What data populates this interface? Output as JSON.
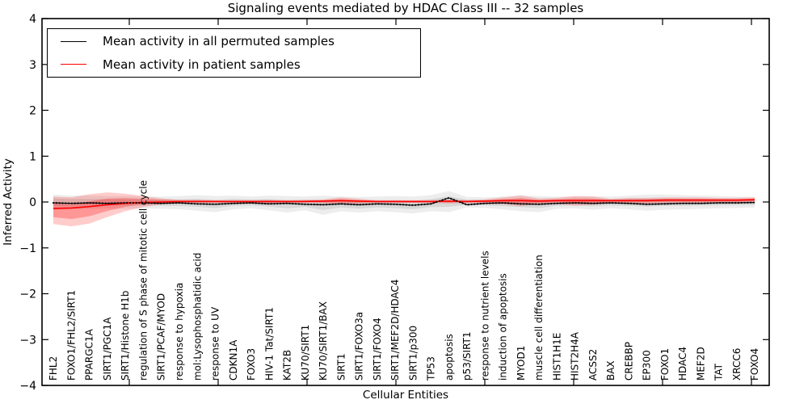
{
  "figure": {
    "title": "Signaling events mediated by HDAC Class III -- 32 samples",
    "xlabel": "Cellular Entities",
    "ylabel": "Inferred Activity",
    "legend": [
      {
        "label": "Mean activity in all permuted samples",
        "color": "#000000"
      },
      {
        "label": "Mean activity in patient samples",
        "color": "#ff0000"
      }
    ]
  },
  "chart_data": {
    "type": "line",
    "title": "Signaling events mediated by HDAC Class III -- 32 samples",
    "xlabel": "Cellular Entities",
    "ylabel": "Inferred Activity",
    "ylim": [
      -4,
      4
    ],
    "yticks": [
      4,
      3,
      2,
      1,
      0,
      -1,
      -2,
      -3,
      -4
    ],
    "ytick_labels": [
      "4",
      "3",
      "2",
      "1",
      "0",
      "−1",
      "−2",
      "−3",
      "−4"
    ],
    "grid": false,
    "legend_position": "upper left",
    "x_tick_label_rotation": 90,
    "categories": [
      "FHL2",
      "FOXO1/FHL2/SIRT1",
      "PPARGC1A",
      "SIRT1/PGC1A",
      "SIRT1/Histone H1b",
      "regulation of S phase of mitotic cell cycle",
      "SIRT1/PCAF/MYOD",
      "response to hypoxia",
      "mol:Lysophosphatidic acid",
      "response to UV",
      "CDKN1A",
      "FOXO3",
      "HIV-1 Tat/SIRT1",
      "KAT2B",
      "KU70/SIRT1",
      "KU70/SIRT1/BAX",
      "SIRT1",
      "SIRT1/FOXO3a",
      "SIRT1/FOXO4",
      "SIRT1/MEF2D/HDAC4",
      "SIRT1/p300",
      "TP53",
      "apoptosis",
      "p53/SIRT1",
      "response to nutrient levels",
      "induction of apoptosis",
      "MYOD1",
      "muscle cell differentiation",
      "HIST1H1E",
      "HIST2H4A",
      "ACSS2",
      "BAX",
      "CREBBP",
      "EP300",
      "FOXO1",
      "HDAC4",
      "MEF2D",
      "TAT",
      "XRCC6",
      "FOXO4"
    ],
    "series": [
      {
        "name": "Mean activity in all permuted samples",
        "color": "#000000",
        "style": "solid-with-dot-markers",
        "values": [
          -0.02,
          -0.03,
          -0.02,
          -0.03,
          -0.02,
          -0.02,
          -0.03,
          -0.02,
          -0.04,
          -0.05,
          -0.03,
          -0.02,
          -0.04,
          -0.03,
          -0.05,
          -0.06,
          -0.04,
          -0.06,
          -0.04,
          -0.05,
          -0.07,
          -0.04,
          0.09,
          -0.06,
          -0.03,
          -0.02,
          -0.04,
          -0.05,
          -0.03,
          -0.02,
          -0.03,
          -0.02,
          -0.03,
          -0.05,
          -0.04,
          -0.03,
          -0.03,
          -0.02,
          -0.02,
          -0.01
        ]
      },
      {
        "name": "Mean activity in patient samples",
        "color": "#ff0000",
        "style": "solid",
        "values": [
          -0.14,
          -0.13,
          -0.1,
          -0.06,
          -0.03,
          -0.01,
          0.0,
          0.01,
          0.01,
          0.01,
          0.01,
          0.01,
          0.01,
          0.01,
          0.01,
          0.02,
          0.03,
          0.02,
          0.01,
          0.01,
          0.01,
          0.01,
          0.02,
          0.01,
          0.02,
          0.03,
          0.03,
          0.02,
          0.03,
          0.03,
          0.03,
          0.03,
          0.03,
          0.03,
          0.04,
          0.04,
          0.04,
          0.04,
          0.04,
          0.05
        ]
      }
    ],
    "bands": [
      {
        "name": "permuted-samples-spread",
        "color": "#000000",
        "fill_alpha": 0.07,
        "upper": [
          0.16,
          0.14,
          0.14,
          0.13,
          0.13,
          0.12,
          0.12,
          0.13,
          0.15,
          0.13,
          0.14,
          0.12,
          0.14,
          0.13,
          0.12,
          0.14,
          0.12,
          0.11,
          0.12,
          0.13,
          0.12,
          0.15,
          0.24,
          0.11,
          0.1,
          0.12,
          0.15,
          0.13,
          0.12,
          0.12,
          0.13,
          0.12,
          0.14,
          0.16,
          0.16,
          0.15,
          0.14,
          0.13,
          0.12,
          0.11
        ],
        "lower": [
          -0.18,
          -0.16,
          -0.15,
          -0.14,
          -0.15,
          -0.14,
          -0.15,
          -0.16,
          -0.19,
          -0.22,
          -0.16,
          -0.14,
          -0.18,
          -0.23,
          -0.18,
          -0.28,
          -0.2,
          -0.23,
          -0.2,
          -0.22,
          -0.25,
          -0.2,
          -0.22,
          -0.12,
          -0.13,
          -0.16,
          -0.2,
          -0.22,
          -0.15,
          -0.14,
          -0.17,
          -0.14,
          -0.16,
          -0.19,
          -0.17,
          -0.16,
          -0.15,
          -0.14,
          -0.13,
          -0.12
        ]
      },
      {
        "name": "patient-samples-spread",
        "color": "#ff0000",
        "fill_alpha": 0.2,
        "upper": [
          0.12,
          0.1,
          0.17,
          0.21,
          0.18,
          0.13,
          0.08,
          0.05,
          0.05,
          0.04,
          0.04,
          0.04,
          0.05,
          0.04,
          0.05,
          0.06,
          0.1,
          0.07,
          0.04,
          0.04,
          0.04,
          0.04,
          0.05,
          0.04,
          0.06,
          0.1,
          0.14,
          0.08,
          0.09,
          0.13,
          0.12,
          0.07,
          0.09,
          0.09,
          0.1,
          0.1,
          0.1,
          0.09,
          0.09,
          0.1
        ],
        "lower": [
          -0.48,
          -0.53,
          -0.47,
          -0.33,
          -0.2,
          -0.11,
          -0.05,
          -0.02,
          -0.02,
          -0.02,
          -0.02,
          -0.02,
          -0.03,
          -0.02,
          -0.02,
          -0.03,
          -0.05,
          -0.04,
          -0.02,
          -0.02,
          -0.02,
          -0.02,
          -0.03,
          -0.02,
          -0.03,
          -0.05,
          -0.09,
          -0.05,
          -0.04,
          -0.08,
          -0.06,
          -0.03,
          -0.04,
          -0.04,
          -0.03,
          -0.03,
          -0.03,
          -0.02,
          -0.02,
          -0.01
        ]
      }
    ]
  }
}
